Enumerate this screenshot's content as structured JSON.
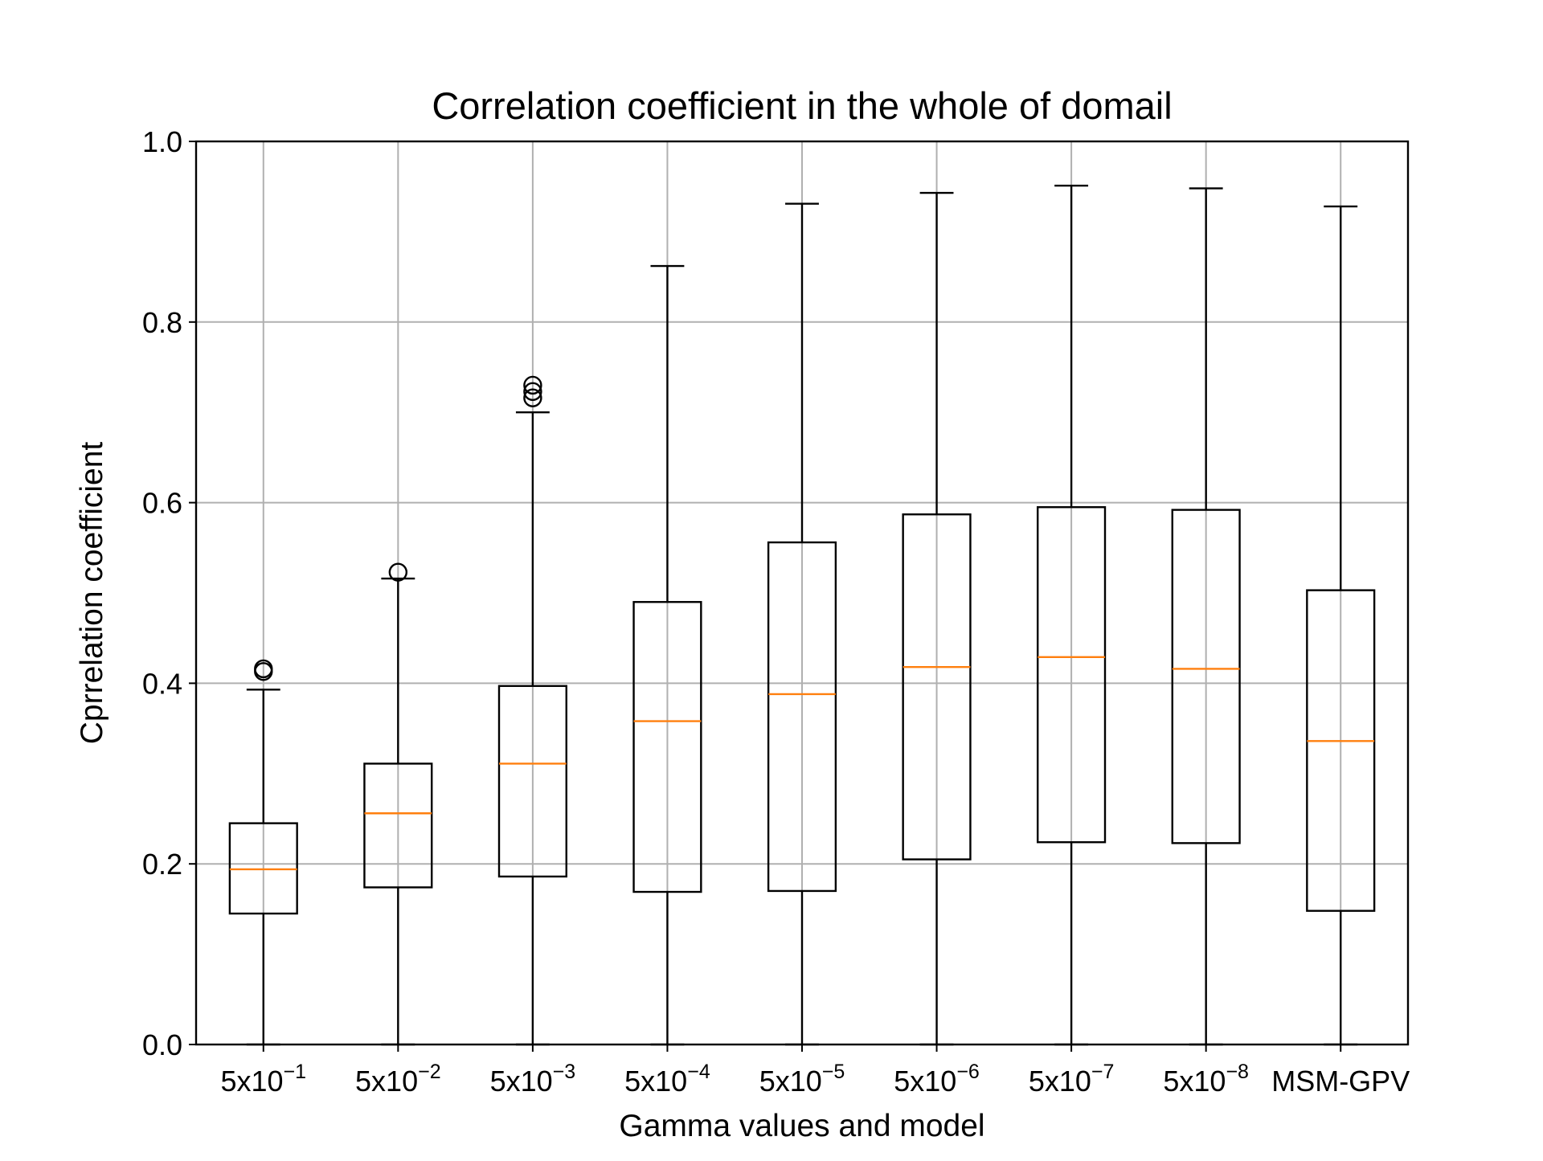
{
  "chart_data": {
    "type": "box",
    "title": "Correlation coefficient in the whole of domail",
    "xlabel": "Gamma values and model",
    "ylabel": "Cprrelation coefficient",
    "ylim": [
      0.0,
      1.0
    ],
    "yticks": [
      "0.0",
      "0.2",
      "0.4",
      "0.6",
      "0.8",
      "1.0"
    ],
    "grid": true,
    "categories": [
      {
        "base": "5x10",
        "exp": "−1"
      },
      {
        "base": "5x10",
        "exp": "−2"
      },
      {
        "base": "5x10",
        "exp": "−3"
      },
      {
        "base": "5x10",
        "exp": "−4"
      },
      {
        "base": "5x10",
        "exp": "−5"
      },
      {
        "base": "5x10",
        "exp": "−6"
      },
      {
        "base": "5x10",
        "exp": "−7"
      },
      {
        "base": "5x10",
        "exp": "−8"
      },
      {
        "base": "MSM-GPV",
        "exp": ""
      }
    ],
    "boxes": [
      {
        "whislo": 0.0,
        "q1": 0.145,
        "med": 0.194,
        "q3": 0.245,
        "whishi": 0.393,
        "fliers": [
          0.413,
          0.416
        ]
      },
      {
        "whislo": 0.0,
        "q1": 0.174,
        "med": 0.256,
        "q3": 0.311,
        "whishi": 0.516,
        "fliers": [
          0.523
        ]
      },
      {
        "whislo": 0.0,
        "q1": 0.186,
        "med": 0.311,
        "q3": 0.397,
        "whishi": 0.7,
        "fliers": [
          0.716,
          0.723,
          0.73
        ]
      },
      {
        "whislo": 0.0,
        "q1": 0.169,
        "med": 0.358,
        "q3": 0.49,
        "whishi": 0.862,
        "fliers": []
      },
      {
        "whislo": 0.0,
        "q1": 0.17,
        "med": 0.388,
        "q3": 0.556,
        "whishi": 0.931,
        "fliers": []
      },
      {
        "whislo": 0.0,
        "q1": 0.205,
        "med": 0.418,
        "q3": 0.587,
        "whishi": 0.943,
        "fliers": []
      },
      {
        "whislo": 0.0,
        "q1": 0.224,
        "med": 0.429,
        "q3": 0.595,
        "whishi": 0.951,
        "fliers": []
      },
      {
        "whislo": 0.0,
        "q1": 0.223,
        "med": 0.416,
        "q3": 0.592,
        "whishi": 0.948,
        "fliers": []
      },
      {
        "whislo": 0.0,
        "q1": 0.148,
        "med": 0.336,
        "q3": 0.503,
        "whishi": 0.928,
        "fliers": []
      }
    ],
    "colors": {
      "box": "#000000",
      "median": "#ff7f0e",
      "grid": "#b0b0b0"
    }
  }
}
